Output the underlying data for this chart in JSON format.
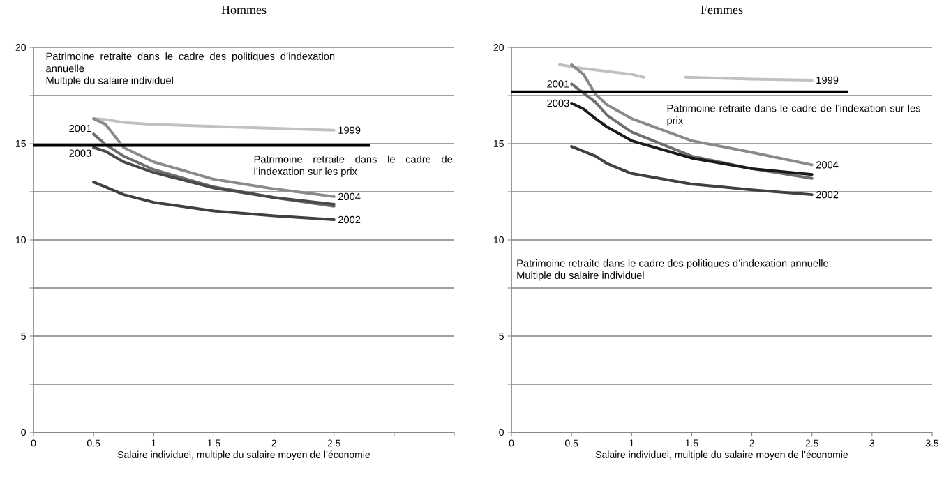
{
  "chart_data": [
    {
      "type": "line",
      "title": "Hommes",
      "xlabel": "Salaire individuel, multiple du salaire moyen de l’économie",
      "xlim": [
        0,
        3.5
      ],
      "ylim": [
        0,
        20
      ],
      "xticks": [
        0,
        0.5,
        1,
        1.5,
        2,
        2.5,
        {
          "value": 3,
          "label": null
        },
        {
          "value": 3.5,
          "label": null
        }
      ],
      "yticks": [
        0,
        {
          "value": 2.5,
          "label": null
        },
        5,
        {
          "value": 7.5,
          "label": null
        },
        10,
        {
          "value": 12.5,
          "label": null
        },
        15,
        {
          "value": 17.5,
          "label": null
        },
        20
      ],
      "grid": "y",
      "series": [
        {
          "name": "1999",
          "color": "#c0c0c0",
          "x": [
            0.5,
            0.6,
            0.75,
            1,
            1.5,
            2,
            2.5
          ],
          "values": [
            16.3,
            16.25,
            16.1,
            16.0,
            15.9,
            15.8,
            15.7
          ]
        },
        {
          "name": "2004",
          "color": "#8a8a8a",
          "x": [
            0.5,
            0.6,
            0.75,
            1,
            1.5,
            2,
            2.5
          ],
          "values": [
            16.3,
            16.0,
            14.8,
            14.05,
            13.15,
            12.65,
            12.25
          ]
        },
        {
          "name": "2001",
          "color": "#6e6e6e",
          "x": [
            0.5,
            0.6,
            0.75,
            1,
            1.5,
            2,
            2.5
          ],
          "values": [
            15.5,
            14.95,
            14.35,
            13.65,
            12.75,
            12.2,
            11.75
          ]
        },
        {
          "name": "2003",
          "color": "#4a4a4a",
          "x": [
            0.5,
            0.6,
            0.75,
            1,
            1.5,
            2,
            2.5
          ],
          "values": [
            14.8,
            14.6,
            14.05,
            13.5,
            12.7,
            12.2,
            11.85
          ]
        },
        {
          "name": "2002",
          "color": "#404040",
          "x": [
            0.5,
            0.6,
            0.75,
            1,
            1.5,
            2,
            2.5
          ],
          "values": [
            13.0,
            12.75,
            12.35,
            11.95,
            11.5,
            11.25,
            11.05
          ]
        }
      ],
      "ref_lines": [
        {
          "axis": "y",
          "value": 14.9,
          "label": "Patrimoine retraite dans le cadre de l’indexation sur les prix",
          "color": "#000000"
        }
      ],
      "annotations": [
        "Patrimoine retraite dans le cadre des politiques d’indexation annuelle",
        "Multiple du salaire individuel"
      ]
    },
    {
      "type": "line",
      "title": "Femmes",
      "xlabel": "Salaire individuel, multiple du salaire moyen de l’économie",
      "xlim": [
        0,
        3.5
      ],
      "ylim": [
        0,
        20
      ],
      "xticks": [
        0,
        0.5,
        1,
        1.5,
        2,
        2.5,
        3,
        3.5
      ],
      "yticks": [
        0,
        {
          "value": 2.5,
          "label": null
        },
        5,
        {
          "value": 7.5,
          "label": null
        },
        10,
        {
          "value": 12.5,
          "label": null
        },
        15,
        {
          "value": 17.5,
          "label": null
        },
        20
      ],
      "grid": "y",
      "series": [
        {
          "name": "1999",
          "color": "#c0c0c0",
          "x": [
            0.4,
            0.6,
            0.8,
            1.0,
            1.1,
            1.3,
            1.45,
            2.0,
            2.5
          ],
          "values": [
            19.1,
            18.9,
            18.75,
            18.6,
            18.45,
            null,
            18.45,
            18.35,
            18.3
          ]
        },
        {
          "name": "2004",
          "color": "#8a8a8a",
          "x": [
            0.5,
            0.6,
            0.7,
            0.8,
            1.0,
            1.5,
            2.0,
            2.5
          ],
          "values": [
            19.1,
            18.6,
            17.55,
            17.0,
            16.3,
            15.15,
            14.55,
            13.9
          ]
        },
        {
          "name": "2001",
          "color": "#6e6e6e",
          "x": [
            0.5,
            0.7,
            0.8,
            1.0,
            1.5,
            2.0,
            2.5
          ],
          "values": [
            18.1,
            17.15,
            16.45,
            15.6,
            14.35,
            13.7,
            13.2
          ]
        },
        {
          "name": "2003",
          "color": "#1a1a1a",
          "x": [
            0.5,
            0.6,
            0.7,
            0.8,
            1.0,
            1.5,
            2.0,
            2.5
          ],
          "values": [
            17.1,
            16.8,
            16.3,
            15.85,
            15.15,
            14.25,
            13.7,
            13.4
          ]
        },
        {
          "name": "2002",
          "color": "#404040",
          "x": [
            0.5,
            0.7,
            0.8,
            1.0,
            1.5,
            2.0,
            2.5
          ],
          "values": [
            14.85,
            14.35,
            13.95,
            13.45,
            12.9,
            12.6,
            12.35
          ]
        }
      ],
      "ref_lines": [
        {
          "axis": "y",
          "value": 17.7,
          "label": "Patrimoine retraite dans le cadre de l’indexation sur les prix",
          "color": "#000000"
        }
      ],
      "annotations": [
        "Patrimoine retraite dans le cadre des politiques d’indexation annuelle",
        "Multiple du salaire individuel"
      ]
    }
  ]
}
